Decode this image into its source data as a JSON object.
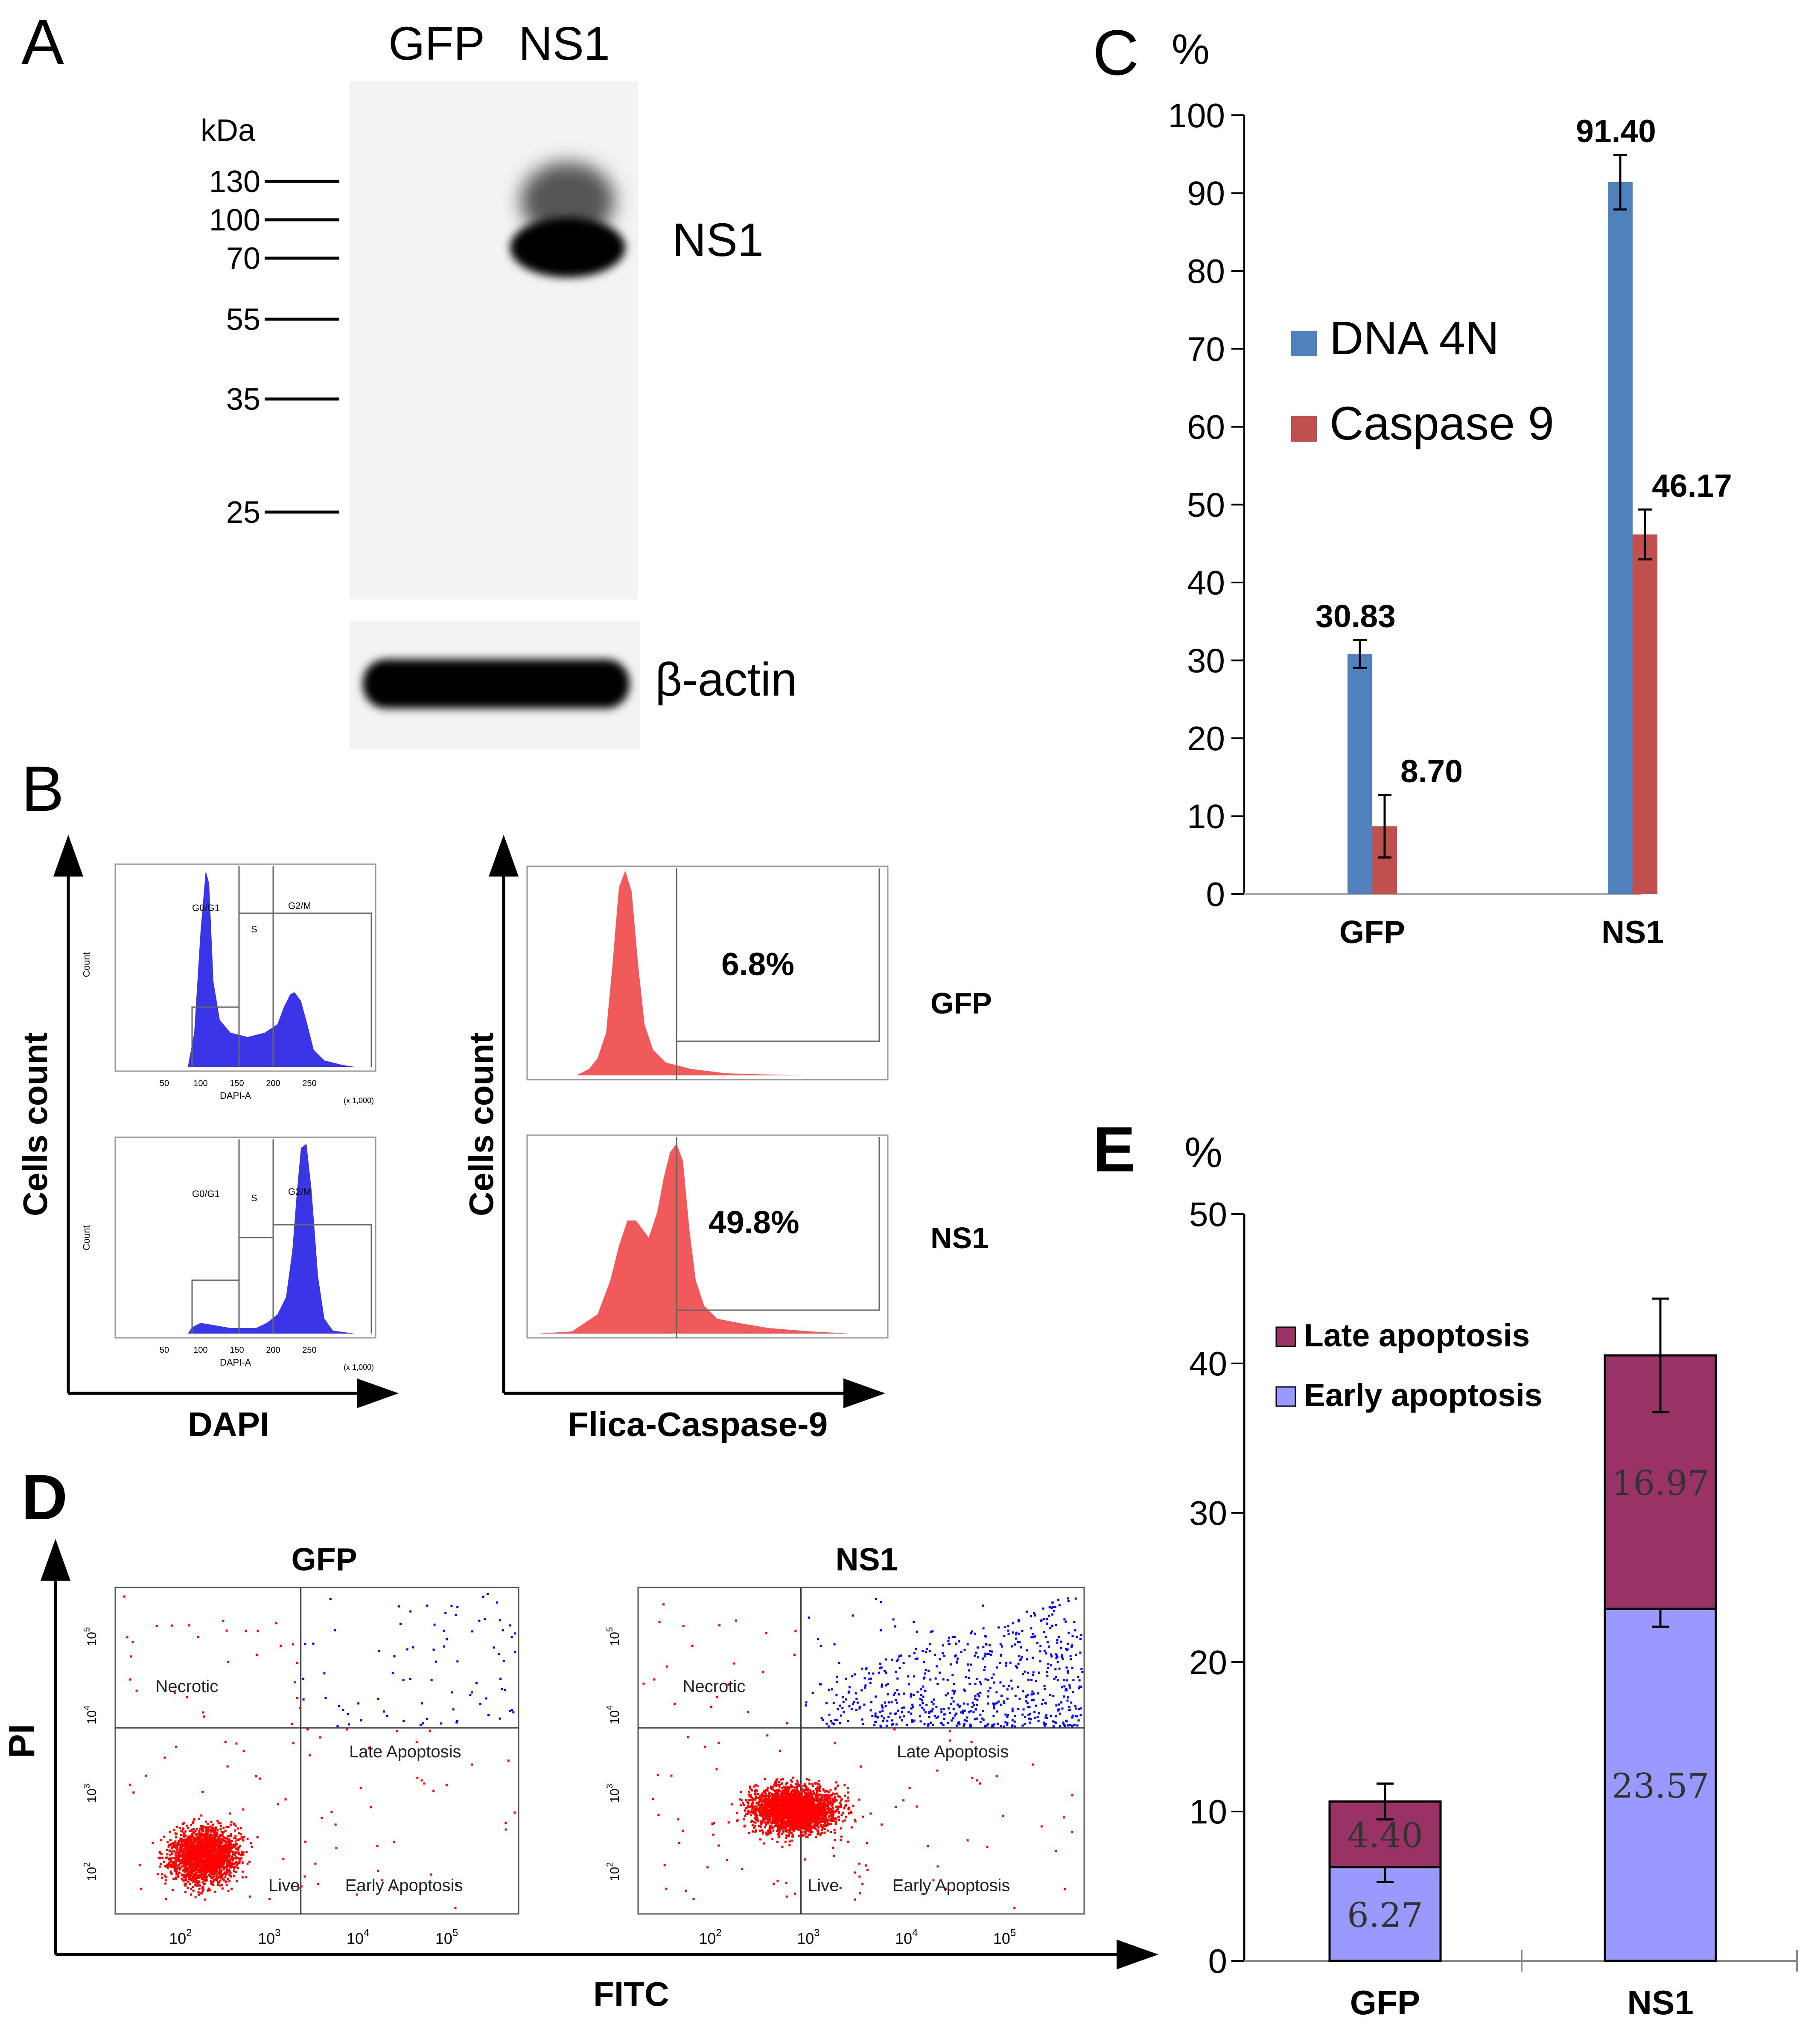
{
  "panel_labels": {
    "a": "A",
    "b": "B",
    "c": "C",
    "d": "D",
    "e": "E"
  },
  "panel_a": {
    "lanes": [
      "GFP",
      "NS1"
    ],
    "unit": "kDa",
    "markers": [
      "130",
      "100",
      "70",
      "55",
      "35",
      "25"
    ],
    "band_label": "NS1",
    "loading_label": "β-actin"
  },
  "panel_b": {
    "ylabel": "Cells count",
    "dapi_xlabel": "DAPI",
    "caspase_xlabel": "Flica-Caspase-9",
    "row_labels": [
      "GFP",
      "NS1"
    ],
    "gates": [
      "G0/G1",
      "S",
      "G2/M"
    ],
    "mini_xlabel": "DAPI-A",
    "mini_ylabel": "Count",
    "mini_scale": "(x 1,000)",
    "mini_ticks": [
      "50",
      "100",
      "150",
      "200",
      "250"
    ],
    "caspase_values": [
      "6.8%",
      "49.8%"
    ],
    "colors": {
      "dapi": "#3b35e8",
      "caspase": "#f05a5a"
    }
  },
  "chart_data": [
    {
      "id": "C",
      "type": "bar",
      "ylabel": "%",
      "ylim": [
        0,
        100
      ],
      "yticks": [
        "0",
        "10",
        "20",
        "30",
        "40",
        "50",
        "60",
        "70",
        "80",
        "90",
        "100"
      ],
      "categories": [
        "GFP",
        "NS1"
      ],
      "series": [
        {
          "name": "DNA 4N",
          "color": "#4f81bd",
          "values": [
            30.83,
            91.4
          ],
          "value_labels": [
            "30.83",
            "91.40"
          ],
          "errors": [
            1.8,
            3.5
          ]
        },
        {
          "name": "Caspase 9",
          "color": "#c0504d",
          "values": [
            8.7,
            46.17
          ],
          "value_labels": [
            "8.70",
            "46.17"
          ],
          "errors": [
            4.0,
            3.2
          ]
        }
      ],
      "legend": "left-upper"
    },
    {
      "id": "D",
      "type": "scatter",
      "xlabel": "FITC",
      "ylabel": "PI",
      "subplots": [
        "GFP",
        "NS1"
      ],
      "quadrants": [
        "Necrotic",
        "Late Apoptosis",
        "Live",
        "Early Apoptosis"
      ],
      "tick_exponents": [
        "2",
        "3",
        "4",
        "5"
      ],
      "tick_base": "10",
      "threshold": 1.3,
      "colors": {
        "live": "#ff0000",
        "late": "#0000ff"
      }
    },
    {
      "id": "E",
      "type": "bar",
      "stacked": true,
      "ylabel": "%",
      "ylim": [
        0,
        50
      ],
      "yticks": [
        "0",
        "10",
        "20",
        "30",
        "40",
        "50"
      ],
      "categories": [
        "GFP",
        "NS1"
      ],
      "series": [
        {
          "name": "Early apoptosis",
          "color": "#9999ff",
          "values": [
            6.27,
            23.57
          ],
          "value_labels": [
            "6.27",
            "23.57"
          ],
          "errors": [
            1.0,
            1.2
          ]
        },
        {
          "name": "Late apoptosis",
          "color": "#993366",
          "values": [
            4.4,
            16.97
          ],
          "value_labels": [
            "4.40",
            "16.97"
          ],
          "errors": [
            1.2,
            3.8
          ]
        }
      ],
      "legend": "top-left"
    }
  ]
}
